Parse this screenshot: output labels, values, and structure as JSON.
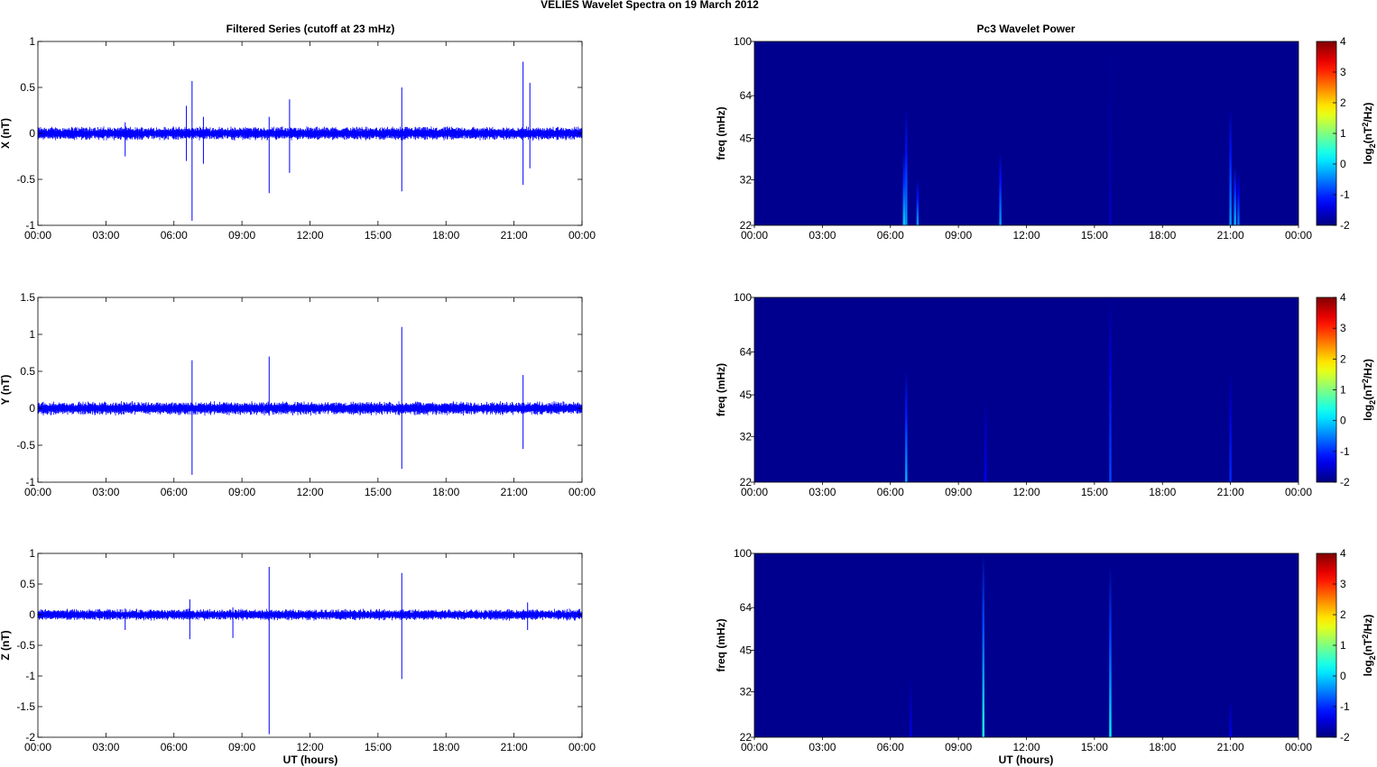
{
  "figure": {
    "suptitle": "VELIES Wavelet Spectra on 19 March     2012",
    "left_title": "Filtered Series (cutoff at 23 mHz)",
    "right_title": "Pc3 Wavelet Power",
    "xlabel": "UT (hours)"
  },
  "chart_data": [
    {
      "type": "line",
      "ylabel": "X (nT)",
      "x_ticks": [
        "00:00",
        "03:00",
        "06:00",
        "09:00",
        "12:00",
        "15:00",
        "18:00",
        "21:00",
        "00:00"
      ],
      "xlim_hours": [
        0,
        24
      ],
      "ylim": [
        -1,
        1
      ],
      "y_ticks": [
        -1,
        -0.5,
        0,
        0.5,
        1
      ],
      "y_tick_labels": [
        "-1",
        "-0.5",
        "0",
        "0.5",
        "1"
      ],
      "series_color": "#0000ff",
      "noise_amplitude": 0.08,
      "spikes": [
        {
          "t": 3.85,
          "min": -0.25,
          "max": 0.12
        },
        {
          "t": 6.55,
          "min": -0.3,
          "max": 0.3
        },
        {
          "t": 6.8,
          "min": -0.95,
          "max": 0.57
        },
        {
          "t": 7.3,
          "min": -0.33,
          "max": 0.18
        },
        {
          "t": 10.2,
          "min": -0.65,
          "max": 0.18
        },
        {
          "t": 11.1,
          "min": -0.43,
          "max": 0.37
        },
        {
          "t": 16.05,
          "min": -0.63,
          "max": 0.5
        },
        {
          "t": 21.4,
          "min": -0.56,
          "max": 0.78
        },
        {
          "t": 21.7,
          "min": -0.38,
          "max": 0.55
        }
      ]
    },
    {
      "type": "line",
      "ylabel": "Y (nT)",
      "x_ticks": [
        "00:00",
        "03:00",
        "06:00",
        "09:00",
        "12:00",
        "15:00",
        "18:00",
        "21:00",
        "00:00"
      ],
      "xlim_hours": [
        0,
        24
      ],
      "ylim": [
        -1,
        1.5
      ],
      "y_ticks": [
        -1,
        -0.5,
        0,
        0.5,
        1,
        1.5
      ],
      "y_tick_labels": [
        "-1",
        "-0.5",
        "0",
        "0.5",
        "1",
        "1.5"
      ],
      "series_color": "#0000ff",
      "noise_amplitude": 0.1,
      "spikes": [
        {
          "t": 6.8,
          "min": -0.9,
          "max": 0.65
        },
        {
          "t": 10.2,
          "min": -0.1,
          "max": 0.7
        },
        {
          "t": 16.05,
          "min": -0.82,
          "max": 1.1
        },
        {
          "t": 21.4,
          "min": -0.55,
          "max": 0.45
        }
      ]
    },
    {
      "type": "line",
      "ylabel": "Z (nT)",
      "x_ticks": [
        "00:00",
        "03:00",
        "06:00",
        "09:00",
        "12:00",
        "15:00",
        "18:00",
        "21:00",
        "00:00"
      ],
      "xlim_hours": [
        0,
        24
      ],
      "ylim": [
        -2,
        1
      ],
      "y_ticks": [
        -2,
        -1.5,
        -1,
        -0.5,
        0,
        0.5,
        1
      ],
      "y_tick_labels": [
        "-2",
        "-1.5",
        "-1",
        "-0.5",
        "0",
        "0.5",
        "1"
      ],
      "series_color": "#0000ff",
      "noise_amplitude": 0.1,
      "spikes": [
        {
          "t": 3.85,
          "min": -0.25,
          "max": 0.1
        },
        {
          "t": 6.7,
          "min": -0.4,
          "max": 0.25
        },
        {
          "t": 8.6,
          "min": -0.38,
          "max": 0.12
        },
        {
          "t": 10.2,
          "min": -1.95,
          "max": 0.78
        },
        {
          "t": 16.05,
          "min": -1.05,
          "max": 0.68
        },
        {
          "t": 21.6,
          "min": -0.25,
          "max": 0.2
        }
      ]
    },
    {
      "type": "heatmap",
      "ylabel": "freq (mHz)",
      "x_ticks": [
        "00:00",
        "03:00",
        "06:00",
        "09:00",
        "12:00",
        "15:00",
        "18:00",
        "21:00",
        "00:00"
      ],
      "xlim_hours": [
        0,
        24
      ],
      "y_scale": "log",
      "ylim": [
        22,
        100
      ],
      "y_ticks": [
        22,
        32,
        45,
        64,
        100
      ],
      "background_color": "#00008f",
      "colorbar": {
        "label": "log2(nT2/Hz)",
        "ticks": [
          -2,
          -1,
          0,
          1,
          2,
          3,
          4
        ],
        "range": [
          -2,
          4
        ],
        "colormap": "jet"
      },
      "streaks": [
        {
          "t": 6.6,
          "fmax": 40,
          "peak": 0.0
        },
        {
          "t": 6.7,
          "fmax": 58,
          "peak": -0.3
        },
        {
          "t": 7.2,
          "fmax": 32,
          "peak": -0.3
        },
        {
          "t": 10.85,
          "fmax": 40,
          "peak": -0.3
        },
        {
          "t": 15.7,
          "fmax": 100,
          "peak": -1.6
        },
        {
          "t": 21.0,
          "fmax": 58,
          "peak": -0.3
        },
        {
          "t": 21.2,
          "fmax": 36,
          "peak": -0.1
        },
        {
          "t": 21.35,
          "fmax": 34,
          "peak": -0.5
        }
      ]
    },
    {
      "type": "heatmap",
      "ylabel": "freq (mHz)",
      "x_ticks": [
        "00:00",
        "03:00",
        "06:00",
        "09:00",
        "12:00",
        "15:00",
        "18:00",
        "21:00",
        "00:00"
      ],
      "xlim_hours": [
        0,
        24
      ],
      "y_scale": "log",
      "ylim": [
        22,
        100
      ],
      "y_ticks": [
        22,
        32,
        45,
        64,
        100
      ],
      "background_color": "#00008f",
      "colorbar": {
        "label": "log2(nT2/Hz)",
        "ticks": [
          -2,
          -1,
          0,
          1,
          2,
          3,
          4
        ],
        "range": [
          -2,
          4
        ],
        "colormap": "jet"
      },
      "streaks": [
        {
          "t": 6.7,
          "fmax": 55,
          "peak": -0.2
        },
        {
          "t": 10.2,
          "fmax": 45,
          "peak": -1.3
        },
        {
          "t": 15.7,
          "fmax": 100,
          "peak": -0.8
        },
        {
          "t": 21.0,
          "fmax": 55,
          "peak": -1.0
        }
      ]
    },
    {
      "type": "heatmap",
      "ylabel": "freq (mHz)",
      "x_ticks": [
        "00:00",
        "03:00",
        "06:00",
        "09:00",
        "12:00",
        "15:00",
        "18:00",
        "21:00",
        "00:00"
      ],
      "xlim_hours": [
        0,
        24
      ],
      "y_scale": "log",
      "ylim": [
        22,
        100
      ],
      "y_ticks": [
        22,
        32,
        45,
        64,
        100
      ],
      "background_color": "#00008f",
      "colorbar": {
        "label": "log2(nT2/Hz)",
        "ticks": [
          -2,
          -1,
          0,
          1,
          2,
          3,
          4
        ],
        "range": [
          -2,
          4
        ],
        "colormap": "jet"
      },
      "streaks": [
        {
          "t": 6.9,
          "fmax": 36,
          "peak": -1.4
        },
        {
          "t": 10.1,
          "fmax": 100,
          "peak": 0.4
        },
        {
          "t": 15.7,
          "fmax": 90,
          "peak": 0.2
        },
        {
          "t": 21.0,
          "fmax": 30,
          "peak": -1.3
        }
      ]
    }
  ]
}
